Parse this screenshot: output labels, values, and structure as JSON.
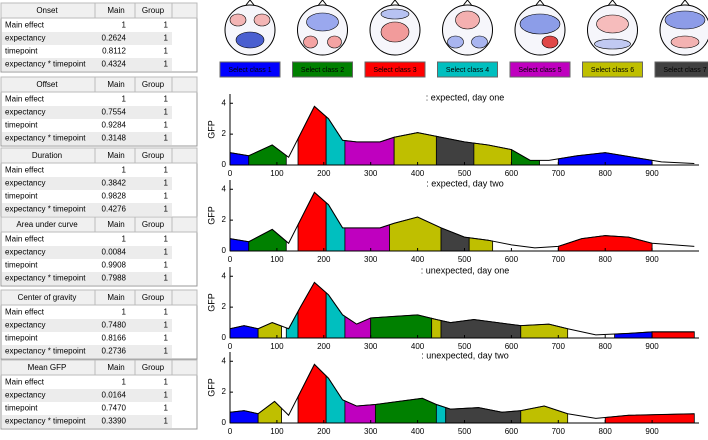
{
  "tables": [
    {
      "title": "Onset",
      "columns": [
        "Main",
        "Group"
      ],
      "rows": [
        [
          "Main effect",
          "1",
          "1"
        ],
        [
          "expectancy",
          "0.2624",
          "1"
        ],
        [
          "timepoint",
          "0.8112",
          "1"
        ],
        [
          "expectancy * timepoint",
          "0.4324",
          "1"
        ]
      ]
    },
    {
      "title": "Offset",
      "columns": [
        "Main",
        "Group"
      ],
      "rows": [
        [
          "Main effect",
          "1",
          "1"
        ],
        [
          "expectancy",
          "0.7554",
          "1"
        ],
        [
          "timepoint",
          "0.9284",
          "1"
        ],
        [
          "expectancy * timepoint",
          "0.3148",
          "1"
        ]
      ]
    },
    {
      "title": "Duration",
      "columns": [
        "Main",
        "Group"
      ],
      "rows": [
        [
          "Main effect",
          "1",
          "1"
        ],
        [
          "expectancy",
          "0.3842",
          "1"
        ],
        [
          "timepoint",
          "0.9828",
          "1"
        ],
        [
          "expectancy * timepoint",
          "0.4276",
          "1"
        ]
      ]
    },
    {
      "title": "Area under curve",
      "columns": [
        "Main",
        "Group"
      ],
      "rows": [
        [
          "Main effect",
          "1",
          "1"
        ],
        [
          "expectancy",
          "0.0084",
          "1"
        ],
        [
          "timepoint",
          "0.9908",
          "1"
        ],
        [
          "expectancy * timepoint",
          "0.7988",
          "1"
        ]
      ]
    },
    {
      "title": "Center of gravity",
      "columns": [
        "Main",
        "Group"
      ],
      "rows": [
        [
          "Main effect",
          "1",
          "1"
        ],
        [
          "expectancy",
          "0.7480",
          "1"
        ],
        [
          "timepoint",
          "0.8166",
          "1"
        ],
        [
          "expectancy * timepoint",
          "0.2736",
          "1"
        ]
      ]
    },
    {
      "title": "Mean GFP",
      "columns": [
        "Main",
        "Group"
      ],
      "rows": [
        [
          "Main effect",
          "1",
          "1"
        ],
        [
          "expectancy",
          "0.0164",
          "1"
        ],
        [
          "timepoint",
          "0.7470",
          "1"
        ],
        [
          "expectancy * timepoint",
          "0.3390",
          "1"
        ]
      ]
    }
  ],
  "classes": [
    {
      "label": "Select class 1",
      "color": "#0000ff"
    },
    {
      "label": "Select class 2",
      "color": "#008000"
    },
    {
      "label": "Select class 3",
      "color": "#ff0000"
    },
    {
      "label": "Select class 4",
      "color": "#00bfbf"
    },
    {
      "label": "Select class 5",
      "color": "#bf00bf"
    },
    {
      "label": "Select class 6",
      "color": "#bfbf00"
    },
    {
      "label": "Select class 7",
      "color": "#404040"
    }
  ],
  "axes": {
    "y_label": "GFP",
    "xlim": [
      0,
      1000
    ],
    "xticks": [
      0,
      100,
      200,
      300,
      400,
      500,
      600,
      700,
      800,
      900
    ],
    "ylim": [
      0,
      4.6
    ],
    "yticks": [
      0,
      2,
      4
    ]
  },
  "plots": [
    {
      "title": ": expected, day one",
      "x": [
        0,
        40,
        90,
        125,
        150,
        180,
        210,
        240,
        270,
        320,
        350,
        400,
        450,
        500,
        550,
        600,
        640,
        680,
        740,
        800,
        860,
        920,
        990
      ],
      "gfp": [
        0.8,
        0.6,
        1.3,
        0.5,
        2.0,
        3.8,
        3.0,
        1.6,
        1.5,
        1.5,
        1.8,
        2.1,
        1.8,
        1.5,
        1.3,
        1.0,
        0.3,
        0.3,
        0.6,
        0.8,
        0.5,
        0.2,
        0.1
      ],
      "segments": [
        {
          "start": 0,
          "end": 40,
          "class": 1
        },
        {
          "start": 40,
          "end": 120,
          "class": 2
        },
        {
          "start": 145,
          "end": 205,
          "class": 3
        },
        {
          "start": 205,
          "end": 245,
          "class": 4
        },
        {
          "start": 245,
          "end": 350,
          "class": 5
        },
        {
          "start": 350,
          "end": 440,
          "class": 6
        },
        {
          "start": 440,
          "end": 520,
          "class": 7
        },
        {
          "start": 520,
          "end": 600,
          "class": 6
        },
        {
          "start": 600,
          "end": 660,
          "class": 2
        },
        {
          "start": 700,
          "end": 900,
          "class": 1
        }
      ]
    },
    {
      "title": ": expected, day two",
      "x": [
        0,
        40,
        90,
        125,
        150,
        180,
        210,
        240,
        270,
        320,
        350,
        400,
        450,
        500,
        550,
        600,
        650,
        700,
        750,
        800,
        850,
        900,
        990
      ],
      "gfp": [
        0.8,
        0.6,
        1.4,
        0.5,
        2.0,
        3.8,
        3.0,
        1.5,
        1.5,
        1.5,
        1.8,
        2.2,
        1.5,
        0.9,
        0.7,
        0.4,
        0.2,
        0.3,
        0.8,
        1.0,
        0.9,
        0.5,
        0.3
      ],
      "segments": [
        {
          "start": 0,
          "end": 40,
          "class": 1
        },
        {
          "start": 40,
          "end": 120,
          "class": 2
        },
        {
          "start": 145,
          "end": 205,
          "class": 3
        },
        {
          "start": 205,
          "end": 245,
          "class": 4
        },
        {
          "start": 245,
          "end": 340,
          "class": 5
        },
        {
          "start": 340,
          "end": 450,
          "class": 6
        },
        {
          "start": 450,
          "end": 510,
          "class": 7
        },
        {
          "start": 510,
          "end": 560,
          "class": 6
        },
        {
          "start": 700,
          "end": 900,
          "class": 3
        }
      ]
    },
    {
      "title": ": unexpected, day one",
      "x": [
        0,
        30,
        60,
        90,
        125,
        150,
        180,
        210,
        240,
        270,
        300,
        350,
        400,
        440,
        470,
        520,
        570,
        620,
        680,
        720,
        780,
        850,
        900,
        990
      ],
      "gfp": [
        0.6,
        0.8,
        0.6,
        1.0,
        0.6,
        2.0,
        3.6,
        2.8,
        1.5,
        0.9,
        1.3,
        1.4,
        1.5,
        1.2,
        1.0,
        1.2,
        1.0,
        0.8,
        0.9,
        0.6,
        0.2,
        0.3,
        0.4,
        0.4
      ],
      "segments": [
        {
          "start": 0,
          "end": 60,
          "class": 1
        },
        {
          "start": 60,
          "end": 110,
          "class": 6
        },
        {
          "start": 120,
          "end": 145,
          "class": 4
        },
        {
          "start": 145,
          "end": 205,
          "class": 3
        },
        {
          "start": 205,
          "end": 245,
          "class": 4
        },
        {
          "start": 245,
          "end": 300,
          "class": 5
        },
        {
          "start": 300,
          "end": 430,
          "class": 2
        },
        {
          "start": 430,
          "end": 450,
          "class": 6
        },
        {
          "start": 450,
          "end": 620,
          "class": 7
        },
        {
          "start": 620,
          "end": 720,
          "class": 6
        },
        {
          "start": 820,
          "end": 900,
          "class": 1
        },
        {
          "start": 900,
          "end": 990,
          "class": 3
        }
      ]
    },
    {
      "title": ": unexpected, day two",
      "x": [
        0,
        30,
        60,
        95,
        125,
        150,
        180,
        210,
        240,
        270,
        310,
        360,
        410,
        440,
        470,
        530,
        580,
        620,
        670,
        720,
        780,
        850,
        990
      ],
      "gfp": [
        0.7,
        0.8,
        0.6,
        1.4,
        0.5,
        2.0,
        3.8,
        2.9,
        1.5,
        1.1,
        1.2,
        1.4,
        1.6,
        1.2,
        0.9,
        1.0,
        0.7,
        0.8,
        1.1,
        0.6,
        0.3,
        0.5,
        0.6
      ],
      "segments": [
        {
          "start": 0,
          "end": 60,
          "class": 1
        },
        {
          "start": 60,
          "end": 110,
          "class": 6
        },
        {
          "start": 145,
          "end": 205,
          "class": 3
        },
        {
          "start": 205,
          "end": 245,
          "class": 4
        },
        {
          "start": 245,
          "end": 310,
          "class": 5
        },
        {
          "start": 310,
          "end": 440,
          "class": 2
        },
        {
          "start": 440,
          "end": 460,
          "class": 4
        },
        {
          "start": 460,
          "end": 620,
          "class": 7
        },
        {
          "start": 620,
          "end": 720,
          "class": 6
        },
        {
          "start": 800,
          "end": 990,
          "class": 3
        }
      ]
    }
  ]
}
